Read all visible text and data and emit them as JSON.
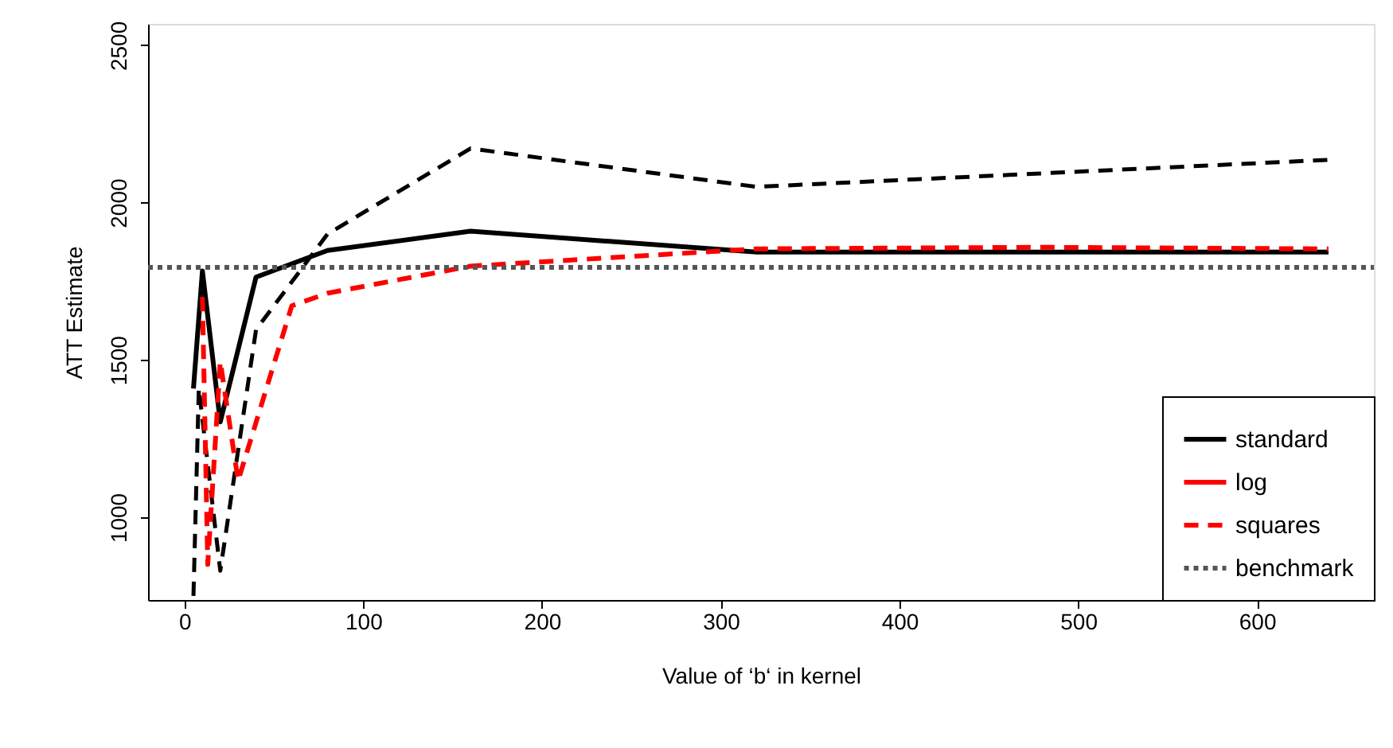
{
  "chart_data": {
    "type": "line",
    "xlabel": "Value of ‘b‘ in kernel",
    "ylabel": "ATT Estimate",
    "xlim": [
      -20.4,
      665.4
    ],
    "ylim": [
      737,
      2568
    ],
    "xticks": [
      0,
      100,
      200,
      300,
      400,
      500,
      600
    ],
    "yticks": [
      1000,
      1500,
      2000,
      2500
    ],
    "grid": false,
    "legend": "bottom right",
    "marker": "none",
    "series": [
      {
        "name": "standard",
        "color": "#000000",
        "line_style": "solid",
        "x": [
          5,
          10,
          20,
          40,
          80,
          160,
          320,
          640
        ],
        "values": [
          1409,
          1783,
          1303,
          1763,
          1848,
          1909,
          1843,
          1843
        ]
      },
      {
        "name": "log",
        "color": "#ff0000",
        "line_style": "solid"
      },
      {
        "name": "squares",
        "color": "#ff0000",
        "line_style": "dashed",
        "x": [
          10,
          13,
          20,
          30,
          60,
          80,
          160,
          320,
          480,
          640
        ],
        "values": [
          1700,
          850,
          1495,
          1116,
          1672,
          1712,
          1798,
          1853,
          1858,
          1853
        ]
      },
      {
        "color": "#000000",
        "line_style": "dashed",
        "x": [
          5,
          8,
          20,
          40,
          80,
          160,
          320,
          640
        ],
        "values": [
          750,
          1410,
          830,
          1596,
          1900,
          2172,
          2050,
          2136
        ]
      }
    ],
    "ref_lines": [
      {
        "axis": "y",
        "value": 1794,
        "label": "benchmark",
        "color": "#555555",
        "line_style": "dotted"
      }
    ]
  }
}
